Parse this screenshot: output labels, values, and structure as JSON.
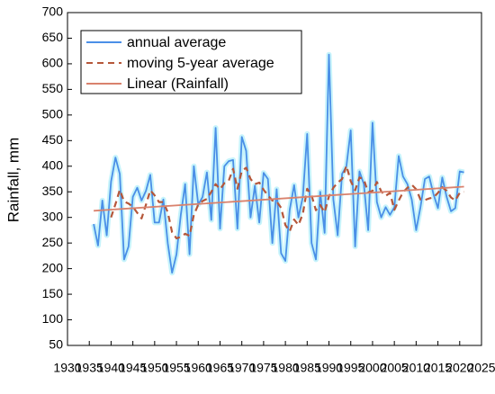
{
  "chart_data": {
    "type": "line",
    "ylabel": "Rainfall, mm",
    "xlim": [
      1930,
      2025
    ],
    "xticks": [
      1930,
      1935,
      1940,
      1945,
      1950,
      1955,
      1960,
      1965,
      1970,
      1975,
      1980,
      1985,
      1990,
      1995,
      2000,
      2005,
      2010,
      2015,
      2020,
      2025
    ],
    "ylim": [
      50,
      700
    ],
    "yticks": [
      50,
      100,
      150,
      200,
      250,
      300,
      350,
      400,
      450,
      500,
      550,
      600,
      650,
      700
    ],
    "legend": "upper left",
    "x": [
      1936,
      1937,
      1938,
      1939,
      1940,
      1941,
      1942,
      1943,
      1944,
      1945,
      1946,
      1947,
      1948,
      1949,
      1950,
      1951,
      1952,
      1953,
      1954,
      1955,
      1956,
      1957,
      1958,
      1959,
      1960,
      1961,
      1962,
      1963,
      1964,
      1965,
      1966,
      1967,
      1968,
      1969,
      1970,
      1971,
      1972,
      1973,
      1974,
      1975,
      1976,
      1977,
      1978,
      1979,
      1980,
      1981,
      1982,
      1983,
      1984,
      1985,
      1986,
      1987,
      1988,
      1989,
      1990,
      1991,
      1992,
      1993,
      1994,
      1995,
      1996,
      1997,
      1998,
      1999,
      2000,
      2001,
      2002,
      2003,
      2004,
      2005,
      2006,
      2007,
      2008,
      2009,
      2010,
      2011,
      2012,
      2013,
      2014,
      2015,
      2016,
      2017,
      2018,
      2019,
      2020,
      2021
    ],
    "series": [
      {
        "name": "annual average",
        "color": "#4a8fe7",
        "dash": "solid",
        "glow": "#b8f0fa",
        "values": [
          287,
          245,
          333,
          265,
          370,
          417,
          385,
          218,
          243,
          340,
          358,
          333,
          352,
          383,
          290,
          290,
          335,
          250,
          192,
          228,
          305,
          365,
          228,
          400,
          325,
          340,
          388,
          295,
          475,
          278,
          400,
          410,
          412,
          278,
          457,
          430,
          300,
          362,
          290,
          387,
          375,
          250,
          355,
          230,
          215,
          315,
          363,
          300,
          340,
          463,
          250,
          218,
          350,
          270,
          618,
          335,
          265,
          385,
          400,
          470,
          243,
          390,
          365,
          275,
          485,
          330,
          300,
          320,
          305,
          320,
          420,
          380,
          365,
          335,
          275,
          320,
          375,
          380,
          345,
          318,
          378,
          340,
          312,
          318,
          390,
          388
        ]
      },
      {
        "name": "moving 5-year average",
        "color": "#b5573a",
        "dash": "dashed",
        "values": [
          null,
          null,
          null,
          null,
          300,
          326,
          354,
          331,
          327,
          321,
          309,
          298,
          325,
          353,
          343,
          330,
          330,
          310,
          271,
          259,
          262,
          268,
          264,
          305,
          325,
          332,
          336,
          350,
          365,
          355,
          367,
          372,
          395,
          356,
          391,
          397,
          375,
          365,
          368,
          354,
          343,
          333,
          331,
          319,
          285,
          273,
          296,
          285,
          307,
          356,
          343,
          314,
          324,
          310,
          341,
          358,
          368,
          375,
          401,
          371,
          353,
          378,
          374,
          349,
          352,
          369,
          351,
          342,
          348,
          315,
          333,
          349,
          358,
          364,
          355,
          335,
          334,
          337,
          339,
          348,
          359,
          352,
          339,
          333,
          348,
          350
        ]
      },
      {
        "name": "Linear (Rainfall)",
        "color": "#d9826d",
        "dash": "solid",
        "x": [
          1936,
          2021
        ],
        "values": [
          313,
          360
        ]
      }
    ]
  }
}
